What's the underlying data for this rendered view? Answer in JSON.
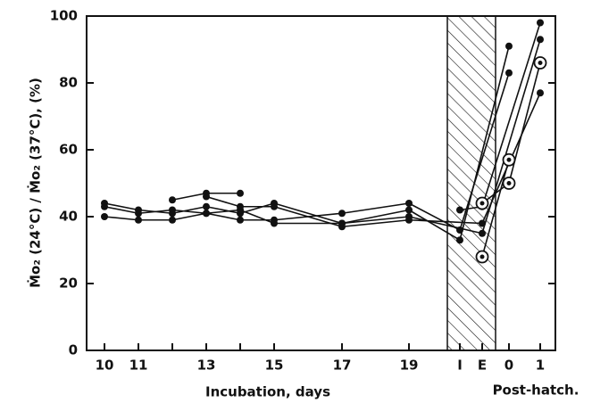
{
  "chart_data": {
    "type": "line",
    "ylabel": "Ṁo₂ (24°C) / Ṁo₂ (37°C), (%)",
    "xlabel": "Incubation, days",
    "xlabel2": "Post-hatch.",
    "categories": [
      "10",
      "11",
      null,
      "13",
      null,
      "15",
      "17",
      "19",
      "I",
      "E",
      "0",
      "1"
    ],
    "ylim": [
      0,
      100
    ],
    "yticks": [
      0,
      20,
      40,
      60,
      80,
      100
    ],
    "color": "#111111",
    "series": [
      {
        "marker": "dot",
        "values": [
          44,
          42,
          41,
          43,
          41,
          44,
          38,
          42,
          33,
          null,
          91,
          null
        ]
      },
      {
        "marker": "dot",
        "values": [
          43,
          41,
          42,
          41,
          39,
          39,
          41,
          44,
          36,
          null,
          83,
          null
        ]
      },
      {
        "marker": "dot",
        "values": [
          40,
          39,
          39,
          41,
          42,
          38,
          38,
          40,
          null,
          35,
          null,
          93
        ]
      },
      {
        "marker": "dot",
        "values": [
          null,
          null,
          45,
          47,
          47,
          null,
          null,
          null,
          null,
          null,
          null,
          null
        ]
      },
      {
        "marker": "dot",
        "values": [
          null,
          null,
          null,
          46,
          43,
          43,
          37,
          39,
          null,
          38,
          null,
          77
        ]
      },
      {
        "marker": "dot",
        "values": [
          null,
          null,
          null,
          null,
          null,
          null,
          null,
          null,
          42,
          43,
          null,
          98
        ]
      },
      {
        "marker": "ring",
        "values": [
          null,
          null,
          null,
          null,
          null,
          null,
          null,
          null,
          null,
          28,
          57,
          null
        ]
      },
      {
        "marker": "ring",
        "values": [
          null,
          null,
          null,
          null,
          null,
          null,
          null,
          null,
          null,
          44,
          50,
          86
        ]
      }
    ]
  }
}
